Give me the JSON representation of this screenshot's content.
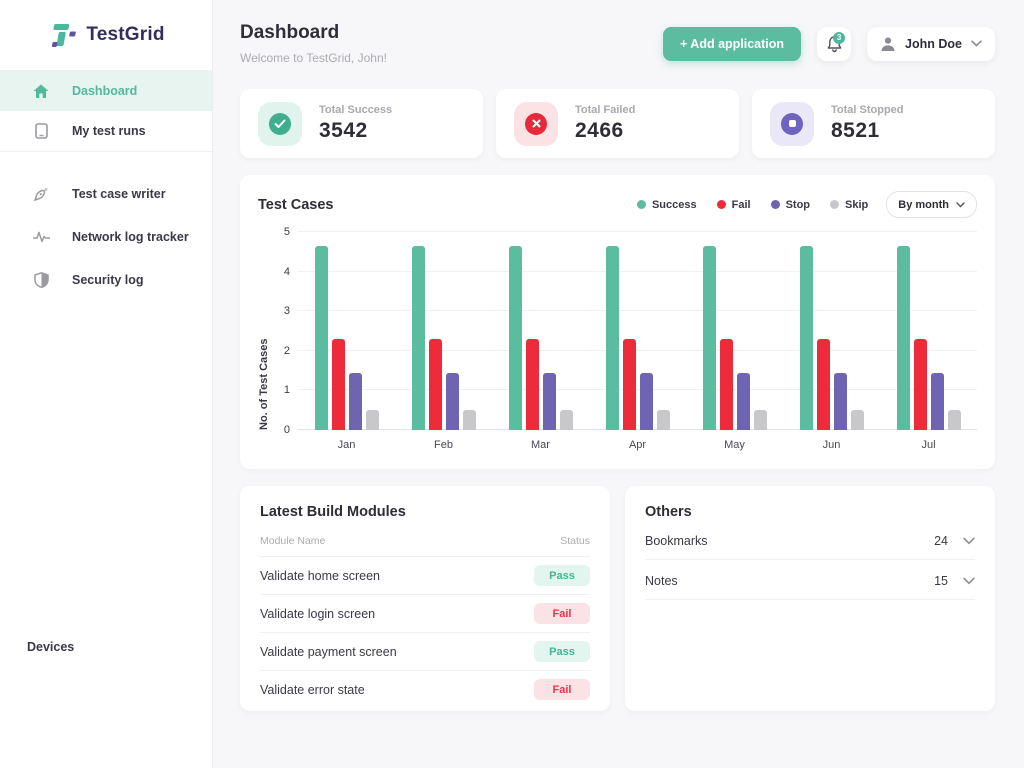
{
  "app": {
    "name": "TestGrid"
  },
  "sidebar": {
    "items": [
      {
        "label": "Dashboard",
        "icon": "home-icon",
        "active": true
      },
      {
        "label": "My test runs",
        "icon": "device-icon",
        "active": false
      },
      {
        "label": "Test case writer",
        "icon": "pen-icon",
        "active": false
      },
      {
        "label": "Network log tracker",
        "icon": "pulse-icon",
        "active": false
      },
      {
        "label": "Security log",
        "icon": "shield-icon",
        "active": false
      }
    ],
    "devices_label": "Devices"
  },
  "header": {
    "title": "Dashboard",
    "subtitle": "Welcome to TestGrid, John!",
    "add_application_label": "+ Add application",
    "notifications_count": "3",
    "user": {
      "name": "John Doe"
    }
  },
  "stats": [
    {
      "label": "Total Success",
      "value": "3542",
      "icon": "check-circle-icon",
      "accent": "#3EAE8F",
      "bg": "#E0F3EC"
    },
    {
      "label": "Total Failed",
      "value": "2466",
      "icon": "x-circle-icon",
      "accent": "#E8293B",
      "bg": "#FBE2E4"
    },
    {
      "label": "Total Stopped",
      "value": "8521",
      "icon": "stop-circle-icon",
      "accent": "#6F63C0",
      "bg": "#EAE7F6"
    }
  ],
  "chart_card": {
    "title": "Test Cases",
    "filter_label": "By month"
  },
  "chart_data": {
    "type": "bar",
    "title": "Test Cases",
    "categories": [
      "Jan",
      "Feb",
      "Mar",
      "Apr",
      "May",
      "Jun",
      "Jul"
    ],
    "series": [
      {
        "name": "Success",
        "color": "#5CBCA0",
        "values": [
          4.65,
          4.65,
          4.65,
          4.65,
          4.65,
          4.65,
          4.65
        ]
      },
      {
        "name": "Fail",
        "color": "#EE2B3B",
        "values": [
          2.3,
          2.3,
          2.3,
          2.3,
          2.3,
          2.3,
          2.3
        ]
      },
      {
        "name": "Stop",
        "color": "#6F64B2",
        "values": [
          1.45,
          1.45,
          1.45,
          1.45,
          1.45,
          1.45,
          1.45
        ]
      },
      {
        "name": "Skip",
        "color": "#C8C8CA",
        "values": [
          0.5,
          0.5,
          0.5,
          0.5,
          0.5,
          0.5,
          0.5
        ]
      }
    ],
    "xlabel": "",
    "ylabel": "No. of Test Cases",
    "ylim": [
      0,
      5
    ],
    "yticks": [
      0,
      1,
      2,
      3,
      4,
      5
    ],
    "grid": true,
    "legend_position": "top-right"
  },
  "modules": {
    "title": "Latest Build Modules",
    "columns": [
      "Module Name",
      "Status"
    ],
    "rows": [
      {
        "name": "Validate home screen",
        "status": "Pass"
      },
      {
        "name": "Validate login screen",
        "status": "Fail"
      },
      {
        "name": "Validate payment screen",
        "status": "Pass"
      },
      {
        "name": "Validate error state",
        "status": "Fail"
      }
    ]
  },
  "others": {
    "title": "Others",
    "rows": [
      {
        "label": "Bookmarks",
        "count": "24"
      },
      {
        "label": "Notes",
        "count": "15"
      }
    ]
  },
  "colors": {
    "brand_teal": "#5CBCA0",
    "brand_navy": "#332E5E",
    "fail_red": "#EE2B3B",
    "stop_purple": "#6F64B2",
    "skip_gray": "#C8C8CA",
    "main_bg": "#F7F7F9"
  }
}
